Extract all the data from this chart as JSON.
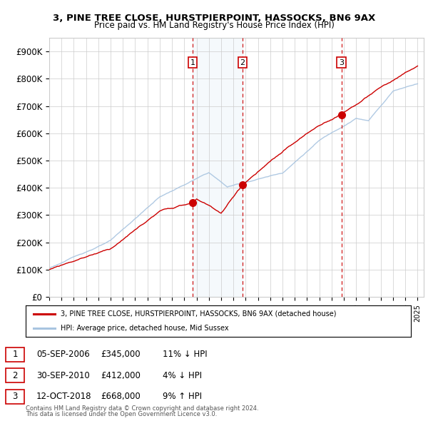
{
  "title_line1": "3, PINE TREE CLOSE, HURSTPIERPOINT, HASSOCKS, BN6 9AX",
  "title_line2": "Price paid vs. HM Land Registry's House Price Index (HPI)",
  "ylim": [
    0,
    950000
  ],
  "yticks": [
    0,
    100000,
    200000,
    300000,
    400000,
    500000,
    600000,
    700000,
    800000,
    900000
  ],
  "ytick_labels": [
    "£0",
    "£100K",
    "£200K",
    "£300K",
    "£400K",
    "£500K",
    "£600K",
    "£700K",
    "£800K",
    "£900K"
  ],
  "xlim_start": 1995.0,
  "xlim_end": 2025.5,
  "sales": [
    {
      "date_num": 2006.67,
      "price": 345000,
      "label": "1"
    },
    {
      "date_num": 2010.75,
      "price": 412000,
      "label": "2"
    },
    {
      "date_num": 2018.79,
      "price": 668000,
      "label": "3"
    }
  ],
  "sale_table": [
    {
      "num": "1",
      "date": "05-SEP-2006",
      "price": "£345,000",
      "change": "11% ↓ HPI"
    },
    {
      "num": "2",
      "date": "30-SEP-2010",
      "price": "£412,000",
      "change": "4% ↓ HPI"
    },
    {
      "num": "3",
      "date": "12-OCT-2018",
      "price": "£668,000",
      "change": "9% ↑ HPI"
    }
  ],
  "legend_line1": "3, PINE TREE CLOSE, HURSTPIERPOINT, HASSOCKS, BN6 9AX (detached house)",
  "legend_line2": "HPI: Average price, detached house, Mid Sussex",
  "footnote1": "Contains HM Land Registry data © Crown copyright and database right 2024.",
  "footnote2": "This data is licensed under the Open Government Licence v3.0.",
  "hpi_color": "#a8c4e0",
  "hpi_fill_color": "#ddeeff",
  "price_color": "#cc0000",
  "dashed_color": "#cc0000",
  "background_color": "#ffffff",
  "grid_color": "#cccccc",
  "shade_color": "#daeaf7"
}
